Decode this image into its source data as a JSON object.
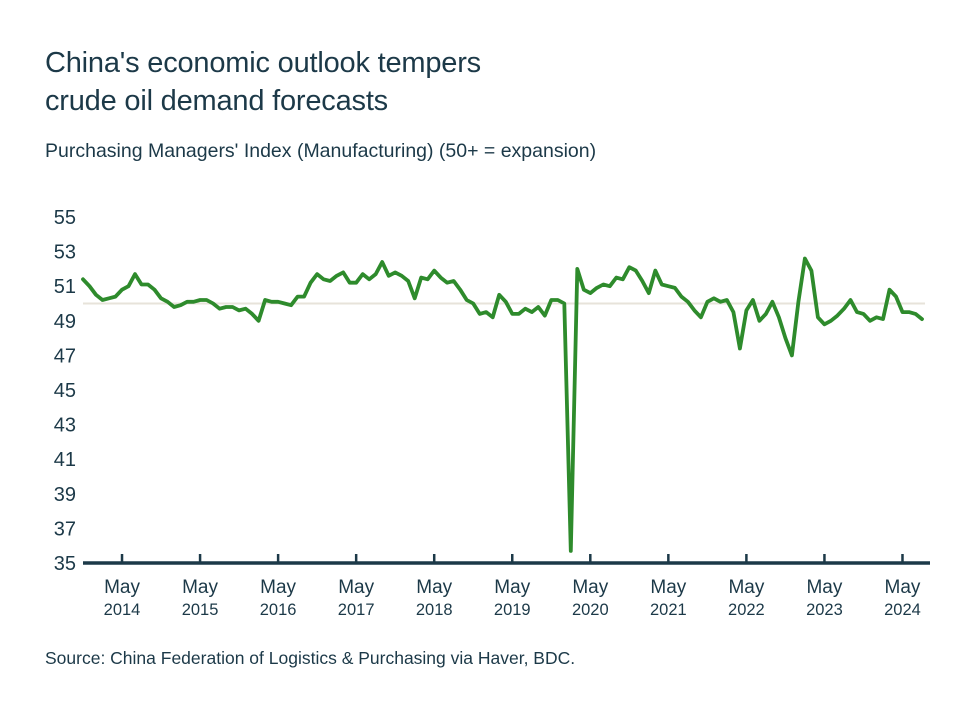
{
  "header": {
    "title_line1": "China's economic outlook tempers",
    "title_line2": "crude oil demand forecasts",
    "subtitle": "Purchasing Managers' Index (Manufacturing) (50+ = expansion)"
  },
  "footer": {
    "source": "Source: China Federation of Logistics & Purchasing via Haver, BDC."
  },
  "colors": {
    "text": "#1c3948",
    "axis": "#1c3948",
    "line": "#2e8b2c",
    "reference_line": "#e7e3da",
    "background": "#ffffff"
  },
  "chart_data": {
    "type": "line",
    "title": "China's economic outlook tempers crude oil demand forecasts",
    "subtitle": "Purchasing Managers' Index (Manufacturing) (50+ = expansion)",
    "ylabel": "",
    "xlabel": "",
    "ylim": [
      35,
      55
    ],
    "y_ticks": [
      55,
      53,
      51,
      49,
      47,
      45,
      43,
      41,
      39,
      37,
      35
    ],
    "x_tick_month": "May",
    "x_tick_years": [
      "2014",
      "2015",
      "2016",
      "2017",
      "2018",
      "2019",
      "2020",
      "2021",
      "2022",
      "2023",
      "2024"
    ],
    "grid": false,
    "legend_position": "none",
    "reference_line": {
      "value": 50
    },
    "series": [
      {
        "name": "China Purchasing Managers' Index (Manufacturing)",
        "start_month": "2013-11",
        "frequency": "monthly",
        "values": [
          51.4,
          51.0,
          50.5,
          50.2,
          50.3,
          50.4,
          50.8,
          51.0,
          51.7,
          51.1,
          51.1,
          50.8,
          50.3,
          50.1,
          49.8,
          49.9,
          50.1,
          50.1,
          50.2,
          50.2,
          50.0,
          49.7,
          49.8,
          49.8,
          49.6,
          49.7,
          49.4,
          49.0,
          50.2,
          50.1,
          50.1,
          50.0,
          49.9,
          50.4,
          50.4,
          51.2,
          51.7,
          51.4,
          51.3,
          51.6,
          51.8,
          51.2,
          51.2,
          51.7,
          51.4,
          51.7,
          52.4,
          51.6,
          51.8,
          51.6,
          51.3,
          50.3,
          51.5,
          51.4,
          51.9,
          51.5,
          51.2,
          51.3,
          50.8,
          50.2,
          50.0,
          49.4,
          49.5,
          49.2,
          50.5,
          50.1,
          49.4,
          49.4,
          49.7,
          49.5,
          49.8,
          49.3,
          50.2,
          50.2,
          50.0,
          35.7,
          52.0,
          50.8,
          50.6,
          50.9,
          51.1,
          51.0,
          51.5,
          51.4,
          52.1,
          51.9,
          51.3,
          50.6,
          51.9,
          51.1,
          51.0,
          50.9,
          50.4,
          50.1,
          49.6,
          49.2,
          50.1,
          50.3,
          50.1,
          50.2,
          49.5,
          47.4,
          49.6,
          50.2,
          49.0,
          49.4,
          50.1,
          49.2,
          48.0,
          47.0,
          50.1,
          52.6,
          51.9,
          49.2,
          48.8,
          49.0,
          49.3,
          49.7,
          50.2,
          49.5,
          49.4,
          49.0,
          49.2,
          49.1,
          50.8,
          50.4,
          49.5,
          49.5,
          49.4,
          49.1
        ]
      }
    ]
  }
}
